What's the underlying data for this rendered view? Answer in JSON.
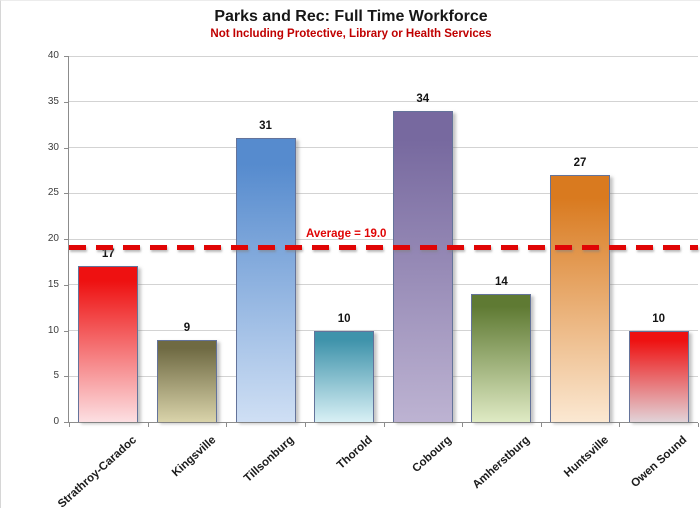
{
  "header": {
    "title": "Parks and Rec: Full Time Workforce",
    "subtitle": "Not Including Protective, Library or Health Services",
    "title_color": "#171717",
    "subtitle_color": "#c00000"
  },
  "chart_data": {
    "type": "bar",
    "title": "Parks and Rec: Full Time Workforce",
    "subtitle": "Not Including Protective, Library or Health Services",
    "categories": [
      "Strathroy-Caradoc",
      "Kingsville",
      "Tillsonburg",
      "Thorold",
      "Cobourg",
      "Amherstburg",
      "Huntsville",
      "Owen Sound"
    ],
    "values": [
      17,
      9,
      31,
      10,
      34,
      14,
      27,
      10
    ],
    "ylim": [
      0,
      40
    ],
    "ytick_step": 5,
    "grid": true,
    "legend": "none",
    "xlabel": "",
    "ylabel": "",
    "average_line": {
      "value": 19.0,
      "label": "Average = 19.0",
      "color": "#e00505",
      "style": "dashed"
    },
    "bar_gradients": [
      {
        "category": "Strathroy-Caradoc",
        "top": "#ee1111",
        "bottom": "#fcdfe2"
      },
      {
        "category": "Kingsville",
        "top": "#6f6a43",
        "bottom": "#d9d3aa"
      },
      {
        "category": "Tillsonburg",
        "top": "#568bce",
        "bottom": "#cfdff4"
      },
      {
        "category": "Thorold",
        "top": "#3f93ab",
        "bottom": "#d8f0f5"
      },
      {
        "category": "Cobourg",
        "top": "#77699f",
        "bottom": "#bdb3d2"
      },
      {
        "category": "Amherstburg",
        "top": "#5f7a33",
        "bottom": "#dfeac4"
      },
      {
        "category": "Huntsville",
        "top": "#d97a1f",
        "bottom": "#fbe8d2"
      },
      {
        "category": "Owen Sound",
        "top": "#ee1111",
        "bottom": "#e2d3d8"
      }
    ],
    "gridline_color": "#d3d3d3",
    "axis_color": "#8c8c8c"
  }
}
